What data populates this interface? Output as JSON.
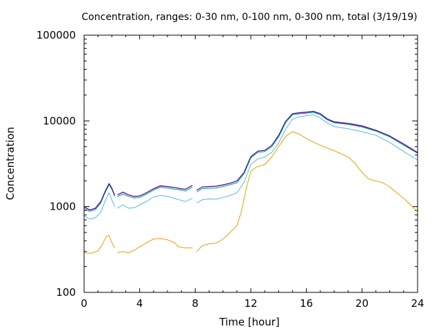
{
  "chart_data": {
    "type": "line",
    "title": "Concentration, ranges: 0-30 nm, 0-100 nm, 0-300 nm, total (3/19/19)",
    "xlabel": "Time [hour]",
    "ylabel": "Concentration",
    "xlim": [
      0,
      24
    ],
    "ylim": [
      100,
      100000
    ],
    "yscale": "log",
    "grid": false,
    "legend": "none",
    "x_ticks": [
      0,
      4,
      8,
      12,
      16,
      20,
      24
    ],
    "x_tick_labels": [
      "0",
      "4",
      "8",
      "12",
      "16",
      "20",
      "24"
    ],
    "y_ticks": [
      100,
      1000,
      10000,
      100000
    ],
    "y_tick_labels": [
      "100",
      "1000",
      "10000",
      "100000"
    ],
    "series": [
      {
        "color": "#e69f00",
        "points": [
          [
            0,
            290
          ],
          [
            0.5,
            285
          ],
          [
            1,
            305
          ],
          [
            1.3,
            360
          ],
          [
            1.6,
            450
          ],
          [
            1.8,
            460
          ],
          [
            2.0,
            380
          ],
          [
            2.2,
            330
          ],
          [
            null,
            null
          ],
          [
            2.4,
            290
          ],
          [
            2.8,
            300
          ],
          [
            3.2,
            290
          ],
          [
            3.6,
            310
          ],
          [
            4.0,
            340
          ],
          [
            4.5,
            380
          ],
          [
            5.0,
            420
          ],
          [
            5.5,
            425
          ],
          [
            6.0,
            410
          ],
          [
            6.5,
            380
          ],
          [
            6.8,
            340
          ],
          [
            7.3,
            330
          ],
          [
            7.8,
            330
          ],
          [
            null,
            null
          ],
          [
            8.1,
            300
          ],
          [
            8.5,
            350
          ],
          [
            9.0,
            370
          ],
          [
            9.5,
            375
          ],
          [
            10.0,
            420
          ],
          [
            10.5,
            500
          ],
          [
            11.0,
            600
          ],
          [
            11.3,
            850
          ],
          [
            11.7,
            1700
          ],
          [
            12.0,
            2600
          ],
          [
            12.4,
            2900
          ],
          [
            13.0,
            3100
          ],
          [
            13.5,
            3800
          ],
          [
            14.0,
            5000
          ],
          [
            14.5,
            6600
          ],
          [
            15.0,
            7500
          ],
          [
            15.5,
            7000
          ],
          [
            16.0,
            6200
          ],
          [
            17.0,
            5200
          ],
          [
            18.0,
            4500
          ],
          [
            19.0,
            3800
          ],
          [
            19.5,
            3200
          ],
          [
            20.0,
            2500
          ],
          [
            20.5,
            2100
          ],
          [
            21.0,
            2000
          ],
          [
            21.5,
            1900
          ],
          [
            22.0,
            1700
          ],
          [
            22.5,
            1450
          ],
          [
            23.0,
            1250
          ],
          [
            23.5,
            1050
          ],
          [
            24.0,
            870
          ]
        ]
      },
      {
        "color": "#56b4e9",
        "points": [
          [
            0,
            780
          ],
          [
            0.4,
            720
          ],
          [
            0.8,
            740
          ],
          [
            1.2,
            860
          ],
          [
            1.5,
            1150
          ],
          [
            1.8,
            1450
          ],
          [
            2.0,
            1200
          ],
          [
            2.2,
            1000
          ],
          [
            null,
            null
          ],
          [
            2.4,
            960
          ],
          [
            2.8,
            1050
          ],
          [
            3.2,
            960
          ],
          [
            3.6,
            970
          ],
          [
            4.0,
            1050
          ],
          [
            4.5,
            1150
          ],
          [
            5.0,
            1300
          ],
          [
            5.5,
            1350
          ],
          [
            6.0,
            1320
          ],
          [
            6.5,
            1250
          ],
          [
            7.0,
            1180
          ],
          [
            7.3,
            1150
          ],
          [
            7.8,
            1250
          ],
          [
            null,
            null
          ],
          [
            8.1,
            1100
          ],
          [
            8.5,
            1200
          ],
          [
            9.0,
            1230
          ],
          [
            9.5,
            1220
          ],
          [
            10.0,
            1280
          ],
          [
            10.5,
            1350
          ],
          [
            11.0,
            1450
          ],
          [
            11.5,
            1900
          ],
          [
            12.0,
            3100
          ],
          [
            12.5,
            3600
          ],
          [
            13.0,
            3800
          ],
          [
            13.5,
            4300
          ],
          [
            14.0,
            5500
          ],
          [
            14.5,
            8000
          ],
          [
            15.0,
            10500
          ],
          [
            15.5,
            11200
          ],
          [
            16.0,
            11500
          ],
          [
            16.5,
            11800
          ],
          [
            17.0,
            10800
          ],
          [
            17.5,
            9500
          ],
          [
            18.0,
            8600
          ],
          [
            19.0,
            8100
          ],
          [
            20.0,
            7500
          ],
          [
            21.0,
            6800
          ],
          [
            22.0,
            5600
          ],
          [
            23.0,
            4400
          ],
          [
            24.0,
            3500
          ]
        ]
      },
      {
        "color": "#009e73",
        "points": [
          [
            0,
            950
          ],
          [
            0.4,
            880
          ],
          [
            0.8,
            920
          ],
          [
            1.2,
            1100
          ],
          [
            1.5,
            1450
          ],
          [
            1.8,
            1800
          ],
          [
            2.0,
            1600
          ],
          [
            2.2,
            1320
          ],
          [
            null,
            null
          ],
          [
            2.4,
            1310
          ],
          [
            2.8,
            1400
          ],
          [
            3.2,
            1320
          ],
          [
            3.6,
            1260
          ],
          [
            4.0,
            1280
          ],
          [
            4.5,
            1400
          ],
          [
            5.0,
            1560
          ],
          [
            5.5,
            1680
          ],
          [
            6.0,
            1650
          ],
          [
            6.5,
            1600
          ],
          [
            7.0,
            1560
          ],
          [
            7.3,
            1520
          ],
          [
            7.8,
            1690
          ],
          [
            null,
            null
          ],
          [
            8.1,
            1480
          ],
          [
            8.5,
            1620
          ],
          [
            9.0,
            1640
          ],
          [
            9.5,
            1650
          ],
          [
            10.0,
            1720
          ],
          [
            10.5,
            1800
          ],
          [
            11.0,
            1900
          ],
          [
            11.5,
            2400
          ],
          [
            12.0,
            3700
          ],
          [
            12.5,
            4300
          ],
          [
            13.0,
            4400
          ],
          [
            13.5,
            5000
          ],
          [
            14.0,
            6500
          ],
          [
            14.5,
            9500
          ],
          [
            15.0,
            11800
          ],
          [
            15.5,
            12100
          ],
          [
            16.0,
            12300
          ],
          [
            16.5,
            12600
          ],
          [
            17.0,
            11800
          ],
          [
            17.5,
            10300
          ],
          [
            18.0,
            9500
          ],
          [
            19.0,
            9100
          ],
          [
            20.0,
            8500
          ],
          [
            21.0,
            7600
          ],
          [
            22.0,
            6500
          ],
          [
            23.0,
            5200
          ],
          [
            24.0,
            4200
          ]
        ]
      },
      {
        "color": "#cc00cc",
        "points": [
          [
            0,
            1000
          ],
          [
            0.4,
            920
          ],
          [
            0.8,
            960
          ],
          [
            1.2,
            1150
          ],
          [
            1.5,
            1500
          ],
          [
            1.8,
            1870
          ],
          [
            2.0,
            1650
          ],
          [
            2.2,
            1360
          ],
          [
            null,
            null
          ],
          [
            2.4,
            1380
          ],
          [
            2.8,
            1480
          ],
          [
            3.2,
            1380
          ],
          [
            3.6,
            1320
          ],
          [
            4.0,
            1340
          ],
          [
            4.5,
            1460
          ],
          [
            5.0,
            1620
          ],
          [
            5.5,
            1760
          ],
          [
            6.0,
            1720
          ],
          [
            6.5,
            1680
          ],
          [
            7.0,
            1620
          ],
          [
            7.3,
            1600
          ],
          [
            7.8,
            1780
          ],
          [
            null,
            null
          ],
          [
            8.1,
            1560
          ],
          [
            8.5,
            1700
          ],
          [
            9.0,
            1720
          ],
          [
            9.5,
            1740
          ],
          [
            10.0,
            1800
          ],
          [
            10.5,
            1880
          ],
          [
            11.0,
            2000
          ],
          [
            11.5,
            2500
          ],
          [
            12.0,
            3850
          ],
          [
            12.5,
            4450
          ],
          [
            13.0,
            4550
          ],
          [
            13.5,
            5200
          ],
          [
            14.0,
            6800
          ],
          [
            14.5,
            9900
          ],
          [
            15.0,
            12200
          ],
          [
            15.5,
            12500
          ],
          [
            16.0,
            12700
          ],
          [
            16.5,
            13000
          ],
          [
            17.0,
            12200
          ],
          [
            17.5,
            10600
          ],
          [
            18.0,
            9800
          ],
          [
            19.0,
            9400
          ],
          [
            20.0,
            8800
          ],
          [
            21.0,
            7800
          ],
          [
            22.0,
            6700
          ],
          [
            23.0,
            5400
          ],
          [
            24.0,
            4300
          ]
        ]
      },
      {
        "color": "#1f1f8f",
        "points": [
          [
            0,
            990
          ],
          [
            0.4,
            910
          ],
          [
            0.8,
            950
          ],
          [
            1.2,
            1140
          ],
          [
            1.5,
            1480
          ],
          [
            1.8,
            1850
          ],
          [
            2.0,
            1630
          ],
          [
            2.2,
            1350
          ],
          [
            null,
            null
          ],
          [
            2.4,
            1370
          ],
          [
            2.8,
            1470
          ],
          [
            3.2,
            1370
          ],
          [
            3.6,
            1310
          ],
          [
            4.0,
            1330
          ],
          [
            4.5,
            1450
          ],
          [
            5.0,
            1610
          ],
          [
            5.5,
            1740
          ],
          [
            6.0,
            1710
          ],
          [
            6.5,
            1670
          ],
          [
            7.0,
            1610
          ],
          [
            7.3,
            1590
          ],
          [
            7.8,
            1770
          ],
          [
            null,
            null
          ],
          [
            8.1,
            1550
          ],
          [
            8.5,
            1690
          ],
          [
            9.0,
            1710
          ],
          [
            9.5,
            1730
          ],
          [
            10.0,
            1790
          ],
          [
            10.5,
            1870
          ],
          [
            11.0,
            1990
          ],
          [
            11.5,
            2480
          ],
          [
            12.0,
            3830
          ],
          [
            12.5,
            4430
          ],
          [
            13.0,
            4530
          ],
          [
            13.5,
            5180
          ],
          [
            14.0,
            6750
          ],
          [
            14.5,
            9850
          ],
          [
            15.0,
            12100
          ],
          [
            15.5,
            12400
          ],
          [
            16.0,
            12600
          ],
          [
            16.5,
            12900
          ],
          [
            17.0,
            12100
          ],
          [
            17.5,
            10500
          ],
          [
            18.0,
            9700
          ],
          [
            19.0,
            9300
          ],
          [
            20.0,
            8700
          ],
          [
            21.0,
            7750
          ],
          [
            22.0,
            6650
          ],
          [
            23.0,
            5350
          ],
          [
            24.0,
            4250
          ]
        ]
      }
    ]
  }
}
